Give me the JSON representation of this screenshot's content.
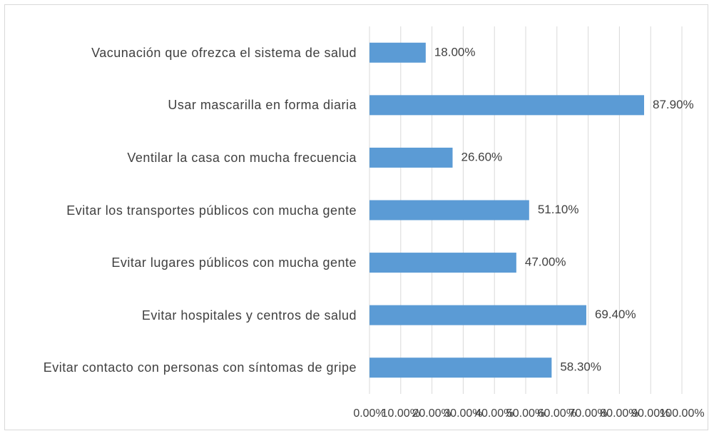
{
  "chart_data": {
    "type": "bar",
    "orientation": "horizontal",
    "categories": [
      "Vacunación que ofrezca el sistema de salud",
      "Usar mascarilla en forma diaria",
      "Ventilar la casa con mucha frecuencia",
      "Evitar los transportes públicos con  mucha gente",
      "Evitar lugares públicos con  mucha gente",
      "Evitar hospitales y centros de salud",
      "Evitar contacto con personas con síntomas de gripe"
    ],
    "values": [
      18.0,
      87.9,
      26.6,
      51.1,
      47.0,
      69.4,
      58.3
    ],
    "value_labels": [
      "18.00%",
      "87.90%",
      "26.60%",
      "51.10%",
      "47.00%",
      "69.40%",
      "58.30%"
    ],
    "color": "#5b9bd5",
    "xlim": [
      0,
      100
    ],
    "xticks": [
      {
        "value": 0,
        "label": "0.00%"
      },
      {
        "value": 10,
        "label": "10.00%"
      },
      {
        "value": 20,
        "label": "20.00%"
      },
      {
        "value": 30,
        "label": "30.00%"
      },
      {
        "value": 40,
        "label": "40.00%"
      },
      {
        "value": 50,
        "label": "50.00%"
      },
      {
        "value": 60,
        "label": "60.00%"
      },
      {
        "value": 70,
        "label": "70.00%"
      },
      {
        "value": 80,
        "label": "80.00%"
      },
      {
        "value": 90,
        "label": "90.00%"
      },
      {
        "value": 100,
        "label": "100.00%"
      }
    ],
    "grid": true
  }
}
